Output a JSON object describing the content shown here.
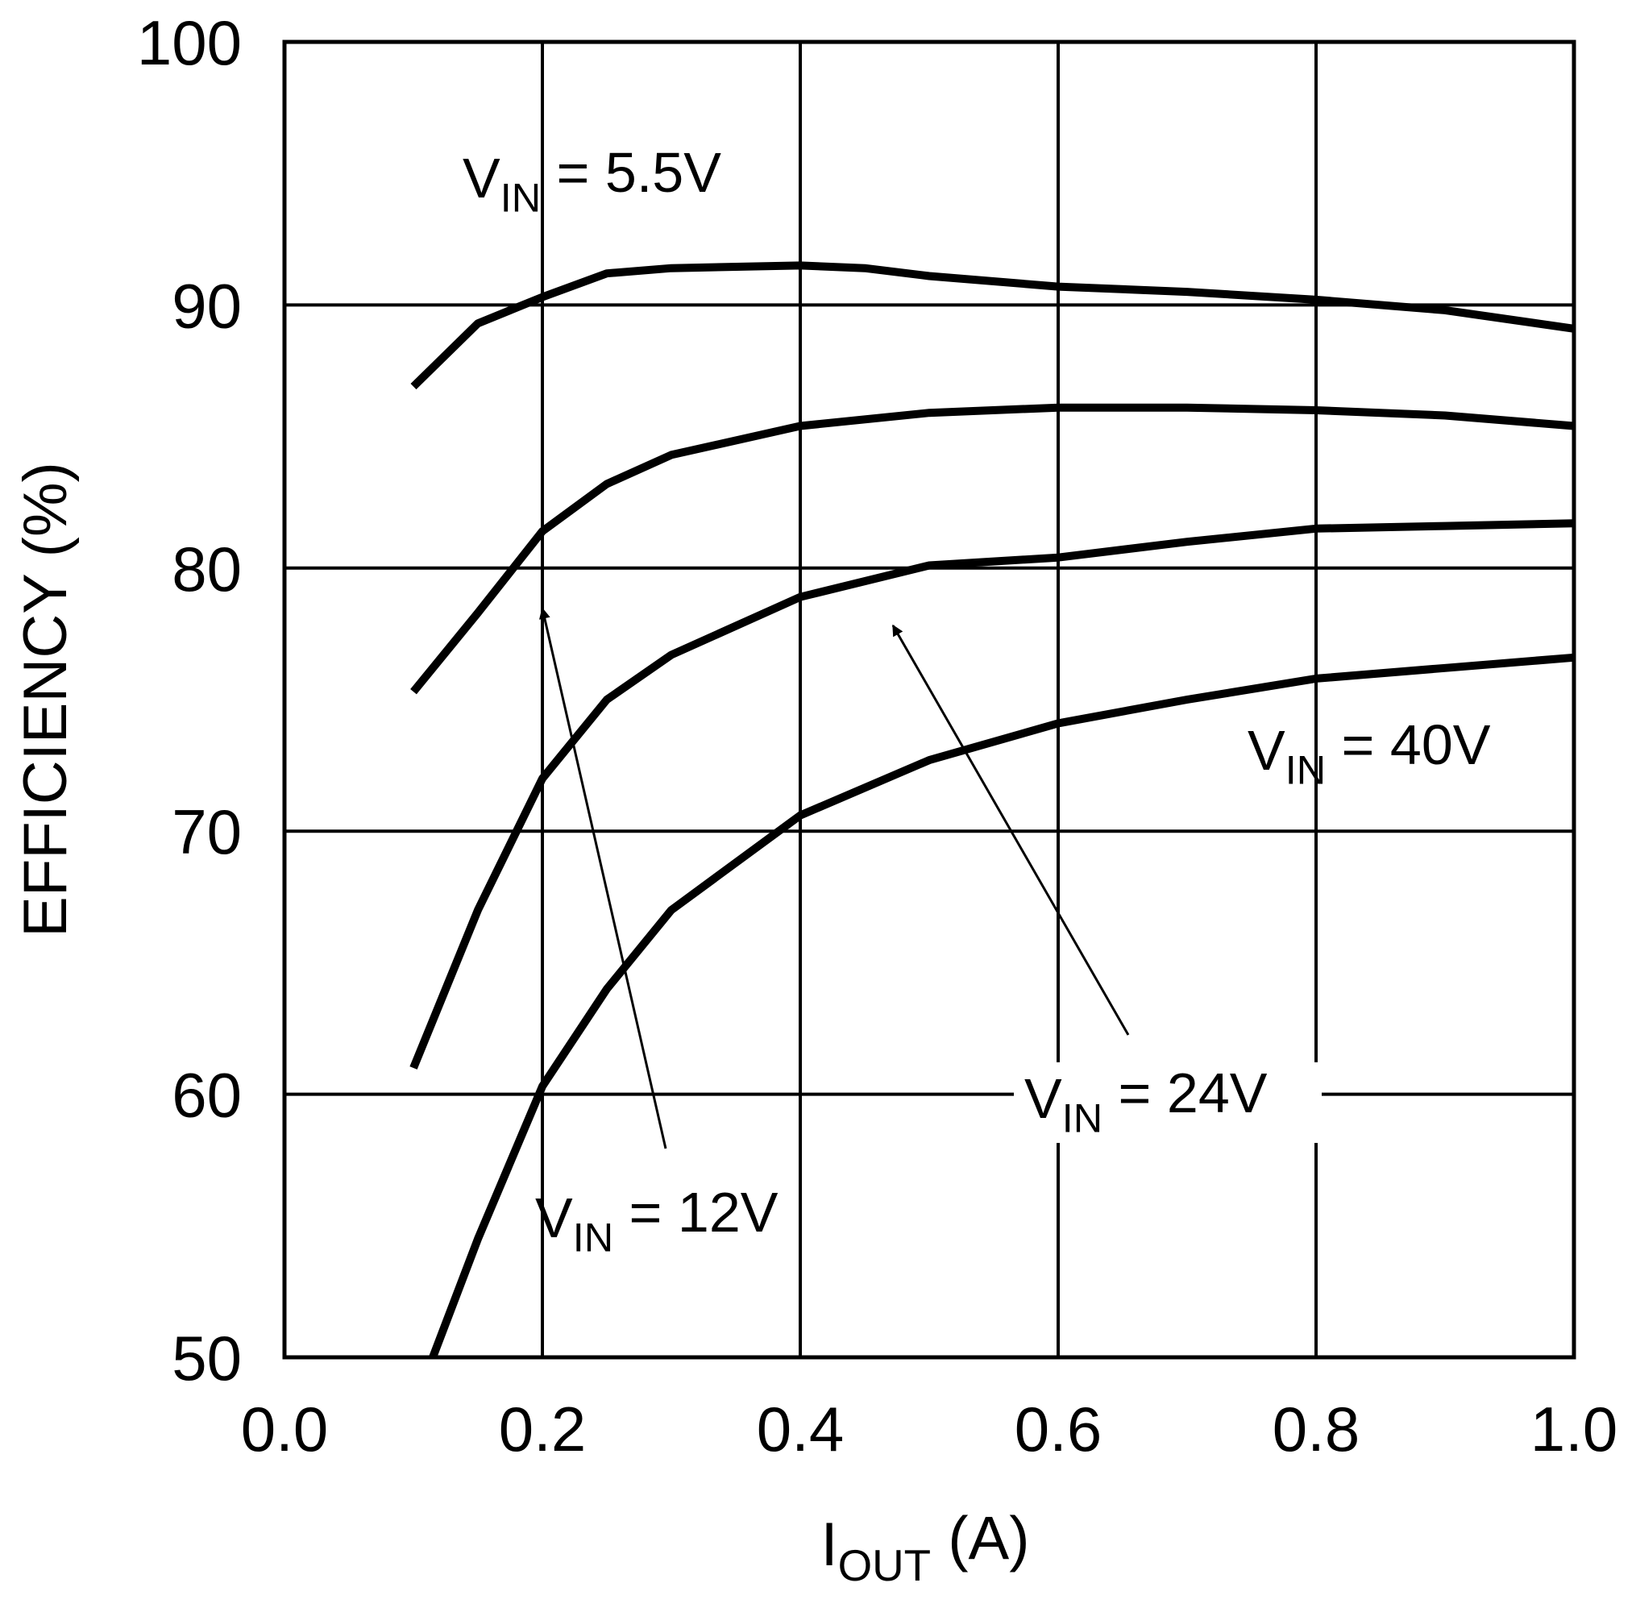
{
  "chart_data": {
    "type": "line",
    "xlabel": "IOUT (A)",
    "ylabel": "EFFICIENCY (%)",
    "xlim": [
      0,
      1
    ],
    "ylim": [
      50,
      100
    ],
    "xticks": [
      {
        "value": 0,
        "label": "0.0"
      },
      0.2,
      0.4,
      0.6,
      0.8,
      {
        "value": 1,
        "label": "1.0"
      }
    ],
    "yticks": [
      50,
      60,
      70,
      80,
      90,
      100
    ],
    "grid": true,
    "color": "#000000",
    "series": [
      {
        "name": "VIN = 5.5V",
        "color": "#000000",
        "x": [
          0.1,
          0.15,
          0.2,
          0.25,
          0.3,
          0.4,
          0.45,
          0.5,
          0.6,
          0.7,
          0.8,
          0.9,
          1.0
        ],
        "values": [
          86.9,
          89.3,
          90.3,
          91.2,
          91.4,
          91.5,
          91.4,
          91.1,
          90.7,
          90.5,
          90.2,
          89.8,
          89.1
        ]
      },
      {
        "name": "VIN = 12V",
        "color": "#000000",
        "x": [
          0.1,
          0.15,
          0.2,
          0.25,
          0.3,
          0.4,
          0.5,
          0.6,
          0.7,
          0.8,
          0.9,
          1.0
        ],
        "values": [
          75.3,
          78.3,
          81.4,
          83.2,
          84.3,
          85.4,
          85.9,
          86.1,
          86.1,
          86.0,
          85.8,
          85.4
        ]
      },
      {
        "name": "VIN = 24V",
        "color": "#000000",
        "x": [
          0.1,
          0.15,
          0.2,
          0.25,
          0.3,
          0.4,
          0.5,
          0.6,
          0.7,
          0.8,
          0.9,
          1.0
        ],
        "values": [
          61.0,
          67.0,
          72.0,
          75.0,
          76.7,
          78.9,
          80.1,
          80.4,
          81.0,
          81.5,
          81.6,
          81.7
        ]
      },
      {
        "name": "VIN = 40V",
        "color": "#000000",
        "x": [
          0.115,
          0.15,
          0.2,
          0.25,
          0.3,
          0.4,
          0.5,
          0.6,
          0.7,
          0.8,
          0.9,
          1.0
        ],
        "values": [
          50.0,
          54.5,
          60.3,
          64.0,
          67.0,
          70.6,
          72.7,
          74.1,
          75.0,
          75.8,
          76.2,
          76.6
        ]
      }
    ]
  }
}
